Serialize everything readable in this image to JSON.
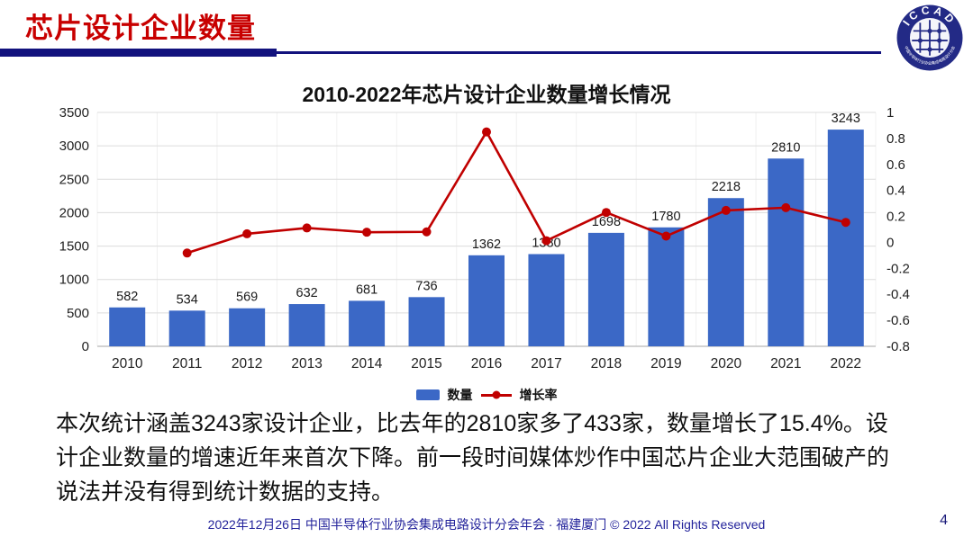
{
  "header": {
    "title": "芯片设计企业数量"
  },
  "logo": {
    "text": "ICCAD",
    "ring_text": "中国半导体行业协会集成电路设计分会"
  },
  "chart_data": {
    "type": "bar+line",
    "title": "2010-2022年芯片设计企业数量增长情况",
    "categories": [
      "2010",
      "2011",
      "2012",
      "2013",
      "2014",
      "2015",
      "2016",
      "2017",
      "2018",
      "2019",
      "2020",
      "2021",
      "2022"
    ],
    "series": [
      {
        "name": "数量",
        "type": "bar",
        "values": [
          582,
          534,
          569,
          632,
          681,
          736,
          1362,
          1380,
          1698,
          1780,
          2218,
          2810,
          3243
        ],
        "color": "#3b68c6"
      },
      {
        "name": "增长率",
        "type": "line",
        "values": [
          null,
          -0.082,
          0.066,
          0.111,
          0.078,
          0.081,
          0.85,
          0.013,
          0.23,
          0.048,
          0.246,
          0.267,
          0.154
        ],
        "color": "#c00000"
      }
    ],
    "left_axis": {
      "min": 0,
      "max": 3500,
      "step": 500
    },
    "right_axis": {
      "min": -0.8,
      "max": 1,
      "step": 0.2
    },
    "grid": true,
    "legend_position": "bottom"
  },
  "body": {
    "paragraph": "本次统计涵盖3243家设计企业，比去年的2810家多了433家，数量增长了15.4%。设计企业数量的增速近年来首次下降。前一段时间媒体炒作中国芯片企业大范围破产的说法并没有得到统计数据的支持。"
  },
  "footer": {
    "text": "2022年12月26日 中国半导体行业协会集成电路设计分会年会 · 福建厦门 © 2022 All Rights Reserved",
    "page": "4"
  },
  "colors": {
    "title_red": "#c80000",
    "navy": "#12127d",
    "bar_blue": "#3b68c6",
    "line_red": "#c00000"
  }
}
